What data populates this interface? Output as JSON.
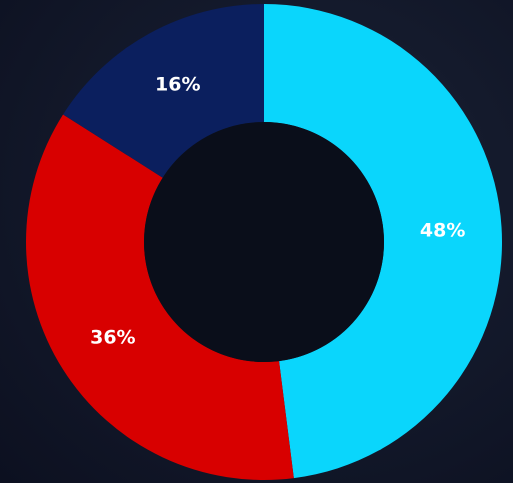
{
  "chart_data": {
    "type": "donut",
    "values": [
      48,
      36,
      16
    ],
    "value_labels": [
      "48%",
      "36%",
      "16%"
    ],
    "colors": [
      "#0ad6fc",
      "#d80000",
      "#0b1f5e"
    ]
  }
}
